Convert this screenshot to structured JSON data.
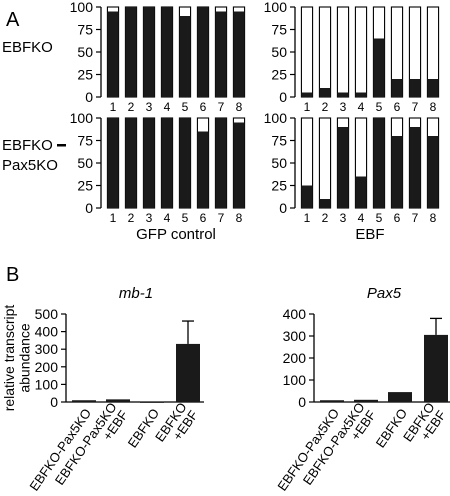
{
  "panels": {
    "a": "A",
    "b": "B"
  },
  "row_labels": {
    "top": "EBFKO",
    "bottom_line1": "EBFKO",
    "bottom_line2": "Pax5KO"
  },
  "colors": {
    "fill": "#1a1a1a",
    "empty": "#ffffff",
    "stroke": "#000000"
  },
  "chart_data": [
    {
      "id": "a-ebfko-gfp",
      "type": "bar",
      "stacked": true,
      "categories": [
        "1",
        "2",
        "3",
        "4",
        "5",
        "6",
        "7",
        "8"
      ],
      "values": [
        95,
        100,
        100,
        100,
        90,
        100,
        95,
        95
      ],
      "ylim": [
        0,
        100
      ],
      "yticks": [
        0,
        25,
        50,
        75,
        100
      ],
      "xlabel": ""
    },
    {
      "id": "a-ebfko-ebf",
      "type": "bar",
      "stacked": true,
      "categories": [
        "1",
        "2",
        "3",
        "4",
        "5",
        "6",
        "7",
        "8"
      ],
      "values": [
        5,
        10,
        5,
        5,
        65,
        20,
        20,
        20
      ],
      "ylim": [
        0,
        100
      ],
      "yticks": [
        0,
        25,
        50,
        75,
        100
      ],
      "xlabel": ""
    },
    {
      "id": "a-dko-gfp",
      "type": "bar",
      "stacked": true,
      "categories": [
        "1",
        "2",
        "3",
        "4",
        "5",
        "6",
        "7",
        "8"
      ],
      "values": [
        100,
        100,
        100,
        100,
        100,
        85,
        100,
        95
      ],
      "ylim": [
        0,
        100
      ],
      "yticks": [
        0,
        25,
        50,
        75,
        100
      ],
      "xlabel": "GFP control"
    },
    {
      "id": "a-dko-ebf",
      "type": "bar",
      "stacked": true,
      "categories": [
        "1",
        "2",
        "3",
        "4",
        "5",
        "6",
        "7",
        "8"
      ],
      "values": [
        25,
        10,
        90,
        35,
        100,
        80,
        90,
        80
      ],
      "ylim": [
        0,
        100
      ],
      "yticks": [
        0,
        25,
        50,
        75,
        100
      ],
      "xlabel": "EBF"
    },
    {
      "id": "b-mb1",
      "type": "bar",
      "title": "mb-1",
      "ylabel": "relative transcript abundance",
      "categories": [
        "EBFKO-Pax5KO",
        "EBFKO-Pax5KO +EBF",
        "EBFKO",
        "EBFKO +EBF"
      ],
      "values": [
        10,
        15,
        2,
        330
      ],
      "errors": [
        0,
        0,
        0,
        130
      ],
      "ylim": [
        0,
        500
      ],
      "yticks": [
        0,
        100,
        200,
        300,
        400,
        500
      ]
    },
    {
      "id": "b-pax5",
      "type": "bar",
      "title": "Pax5",
      "categories": [
        "EBFKO-Pax5KO",
        "EBFKO-Pax5KO +EBF",
        "EBFKO",
        "EBFKO +EBF"
      ],
      "values": [
        8,
        10,
        45,
        305
      ],
      "errors": [
        0,
        0,
        0,
        75
      ],
      "ylim": [
        0,
        400
      ],
      "yticks": [
        0,
        100,
        200,
        300,
        400
      ]
    }
  ]
}
